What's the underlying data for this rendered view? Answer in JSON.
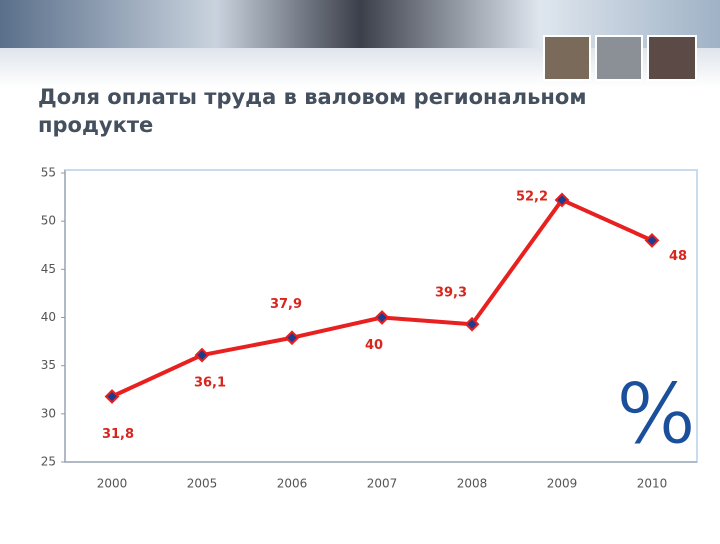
{
  "chart_data": {
    "type": "line",
    "title": "Доля оплаты труда в валовом региональном продукте",
    "annotation": "%",
    "categories": [
      "2000",
      "2005",
      "2006",
      "2007",
      "2008",
      "2009",
      "2010"
    ],
    "series": [
      {
        "color": "#e8201f",
        "values": [
          31.8,
          36.1,
          37.9,
          40,
          39.3,
          52.2,
          48
        ],
        "value_labels": [
          "31,8",
          "36,1",
          "37,9",
          "40",
          "39,3",
          "52,2",
          "48"
        ]
      }
    ],
    "ylim": [
      25,
      55
    ],
    "yticks": [
      25,
      30,
      35,
      40,
      45,
      50,
      55
    ],
    "grid": false
  }
}
